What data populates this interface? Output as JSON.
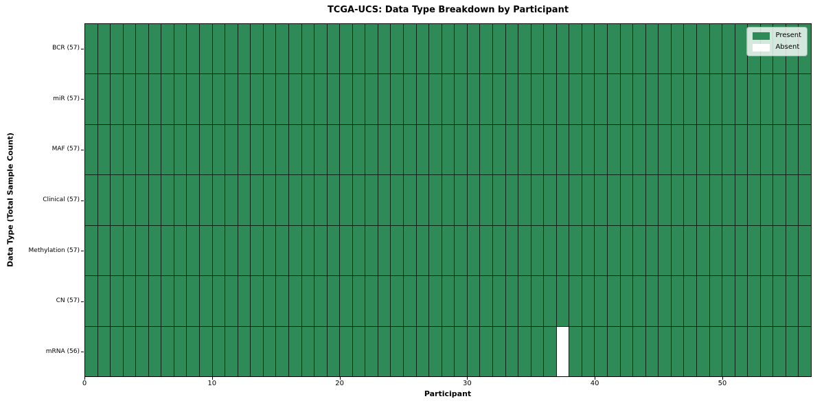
{
  "title": "TCGA-UCS: Data Type Breakdown by Participant",
  "axes": {
    "xlabel": "Participant",
    "ylabel": "Data Type (Total Sample Count)"
  },
  "legend": {
    "items": [
      {
        "label": "Present",
        "color": "#2e8b57"
      },
      {
        "label": "Absent",
        "color": "#ffffff"
      }
    ]
  },
  "chart_data": {
    "type": "heatmap",
    "title": "TCGA-UCS: Data Type Breakdown by Participant",
    "xlabel": "Participant",
    "ylabel": "Data Type (Total Sample Count)",
    "n_participants": 57,
    "x_range": [
      0,
      57
    ],
    "x_ticks": [
      0,
      10,
      20,
      30,
      40,
      50
    ],
    "grid": true,
    "legend_position": "upper right",
    "colors": {
      "present": "#2e8b57",
      "absent": "#ffffff",
      "grid_line": "rgba(0,0,0,0.75)"
    },
    "rows": [
      {
        "label": "BCR (57)",
        "data_type": "BCR",
        "count": 57,
        "absent_participants": []
      },
      {
        "label": "miR (57)",
        "data_type": "miR",
        "count": 57,
        "absent_participants": []
      },
      {
        "label": "MAF (57)",
        "data_type": "MAF",
        "count": 57,
        "absent_participants": []
      },
      {
        "label": "Clinical (57)",
        "data_type": "Clinical",
        "count": 57,
        "absent_participants": []
      },
      {
        "label": "Methylation (57)",
        "data_type": "Methylation",
        "count": 57,
        "absent_participants": []
      },
      {
        "label": "CN (57)",
        "data_type": "CN",
        "count": 57,
        "absent_participants": []
      },
      {
        "label": "mRNA (56)",
        "data_type": "mRNA",
        "count": 56,
        "absent_participants": [
          37
        ]
      }
    ]
  }
}
